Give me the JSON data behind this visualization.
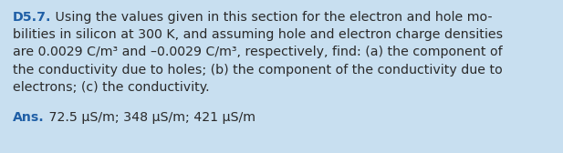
{
  "background_color": "#c8dff0",
  "label": "D5.7.",
  "label_color": "#1f5fa6",
  "body_color": "#2a2a2a",
  "ans_label": "Ans.",
  "ans_label_color": "#1f5fa6",
  "ans_text": " 72.5 μS/m; 348 μS/m; 421 μS/m",
  "ans_text_color": "#2a2a2a",
  "font_size": 10.2,
  "line1": " Using the values given in this section for the electron and hole mo-",
  "line2": "bilities in silicon at 300 K, and assuming hole and electron charge densities",
  "line3": "are 0.0029 C/m³ and –0.0029 C/m³, respectively, find: (a) the component of",
  "line4": "the conductivity due to holes; (b) the component of the conductivity due to",
  "line5": "electrons; (c) the conductivity."
}
